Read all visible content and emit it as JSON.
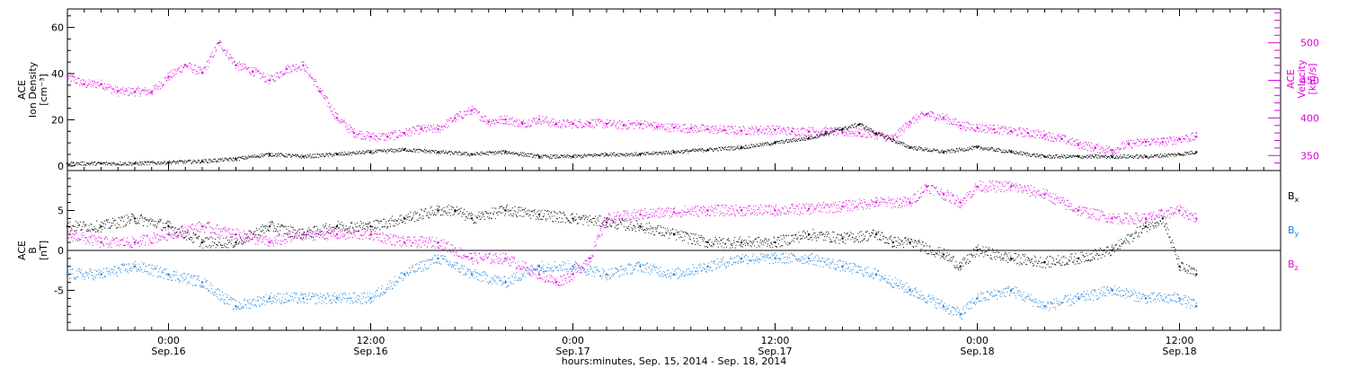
{
  "colors": {
    "black": "#000000",
    "magenta": "#e000e0",
    "blue": "#1a7fd8"
  },
  "xlabel": "hours:minutes, Sep. 15, 2014 - Sep. 18, 2014",
  "x_range_hours": [
    18,
    90
  ],
  "x_ticks": [
    {
      "hour": 24,
      "time": "0:00",
      "date": "Sep.16"
    },
    {
      "hour": 36,
      "time": "12:00",
      "date": "Sep.16"
    },
    {
      "hour": 48,
      "time": "0:00",
      "date": "Sep.17"
    },
    {
      "hour": 60,
      "time": "12:00",
      "date": "Sep.17"
    },
    {
      "hour": 72,
      "time": "0:00",
      "date": "Sep.18"
    },
    {
      "hour": 84,
      "time": "12:00",
      "date": "Sep.18"
    }
  ],
  "chart_data": [
    {
      "type": "scatter",
      "panel": "top",
      "ylabel_left": [
        "ACE",
        "Ion Density",
        "[cm⁻³]"
      ],
      "ylabel_right": [
        "ACE",
        "Velocity",
        "[km/s]"
      ],
      "ylim_left": [
        -2,
        68
      ],
      "ylim_right": [
        330,
        545
      ],
      "yticks_left": [
        0,
        20,
        40,
        60
      ],
      "yticks_right": [
        350,
        400,
        450,
        500
      ],
      "series": [
        {
          "axis": "left",
          "color": "#000000",
          "x": [
            18,
            20,
            22,
            24,
            26,
            28,
            30,
            32,
            34,
            36,
            38,
            40,
            42,
            44,
            46,
            48,
            50,
            52,
            54,
            56,
            58,
            60,
            62,
            63,
            64,
            65,
            66,
            68,
            70,
            72,
            74,
            76,
            78,
            80,
            82,
            84,
            85
          ],
          "y": [
            1,
            1,
            1,
            1.5,
            2,
            3,
            5,
            4,
            5,
            6,
            7,
            6,
            5,
            6,
            4,
            4,
            5,
            5,
            6,
            7,
            8,
            10,
            12,
            14,
            16,
            18,
            14,
            8,
            6,
            8,
            6,
            4,
            4,
            4,
            4,
            5,
            6
          ]
        },
        {
          "axis": "right",
          "color": "#e000e0",
          "x": [
            18,
            19,
            20,
            21,
            22,
            23,
            24,
            25,
            26,
            27,
            28,
            29,
            30,
            31,
            32,
            33,
            34,
            35,
            36,
            37,
            38,
            39,
            40,
            41,
            42,
            43,
            44,
            45,
            46,
            47,
            48,
            49,
            50,
            51,
            52,
            53,
            54,
            55,
            56,
            57,
            58,
            59,
            60,
            61,
            62,
            63,
            64,
            65,
            66,
            67,
            68,
            69,
            70,
            71,
            72,
            73,
            74,
            75,
            76,
            77,
            78,
            79,
            80,
            81,
            82,
            83,
            84,
            85
          ],
          "y": [
            455,
            445,
            445,
            435,
            435,
            435,
            455,
            470,
            460,
            500,
            470,
            462,
            450,
            465,
            470,
            435,
            400,
            380,
            375,
            375,
            380,
            385,
            385,
            400,
            410,
            395,
            398,
            392,
            398,
            392,
            392,
            393,
            392,
            390,
            392,
            388,
            387,
            386,
            385,
            384,
            383,
            384,
            384,
            382,
            382,
            382,
            381,
            380,
            378,
            372,
            395,
            405,
            400,
            390,
            387,
            385,
            382,
            380,
            377,
            372,
            365,
            360,
            357,
            365,
            368,
            368,
            372,
            375
          ]
        }
      ]
    },
    {
      "type": "scatter",
      "panel": "bottom",
      "ylabel_left": [
        "ACE",
        "B",
        "[nT]"
      ],
      "ylim": [
        -10,
        10
      ],
      "yticks": [
        -5,
        0,
        5
      ],
      "legend": [
        {
          "label": "Bx",
          "base": "B",
          "sub": "x",
          "color": "#000000"
        },
        {
          "label": "By",
          "base": "B",
          "sub": "y",
          "color": "#1a7fd8"
        },
        {
          "label": "Bz",
          "base": "B",
          "sub": "z",
          "color": "#e000e0"
        }
      ],
      "series": [
        {
          "name": "Bx",
          "color": "#000000",
          "x": [
            18,
            20,
            22,
            24,
            26,
            28,
            30,
            32,
            34,
            36,
            38,
            40,
            41,
            42,
            44,
            46,
            48,
            50,
            52,
            54,
            56,
            58,
            60,
            62,
            64,
            66,
            67,
            68,
            70,
            71,
            72,
            74,
            76,
            78,
            80,
            82,
            83,
            84,
            85
          ],
          "y": [
            3,
            3,
            4,
            3,
            1,
            1,
            3,
            2,
            3,
            3,
            4,
            5,
            5,
            4,
            5,
            4.5,
            4,
            3.5,
            3,
            2,
            1,
            1,
            1,
            2,
            1.5,
            2,
            1,
            1,
            -0.5,
            -2,
            0,
            -1,
            -1.5,
            -1,
            0,
            3,
            4,
            -2,
            -3
          ]
        },
        {
          "name": "By",
          "color": "#1a7fd8",
          "x": [
            18,
            20,
            22,
            24,
            26,
            28,
            30,
            32,
            34,
            36,
            38,
            40,
            42,
            44,
            46,
            48,
            50,
            52,
            54,
            56,
            58,
            60,
            62,
            64,
            66,
            68,
            70,
            71,
            72,
            74,
            76,
            78,
            80,
            82,
            84,
            85
          ],
          "y": [
            -3,
            -3,
            -2,
            -3,
            -4,
            -7,
            -6,
            -6,
            -6,
            -6,
            -3,
            -1,
            -3,
            -4,
            -2,
            -2,
            -3,
            -2,
            -3,
            -2,
            -1,
            -1,
            -1,
            -2,
            -3,
            -5,
            -7,
            -8,
            -6,
            -5,
            -7,
            -6,
            -5,
            -6,
            -6,
            -7
          ]
        },
        {
          "name": "Bz",
          "color": "#e000e0",
          "x": [
            18,
            20,
            22,
            24,
            26,
            28,
            30,
            32,
            34,
            36,
            38,
            40,
            42,
            44,
            46,
            47,
            48,
            49,
            50,
            52,
            54,
            56,
            58,
            60,
            62,
            64,
            66,
            68,
            69,
            70,
            71,
            72,
            74,
            76,
            78,
            80,
            82,
            84,
            85
          ],
          "y": [
            2,
            1,
            1,
            2,
            3,
            2,
            1,
            2,
            2,
            2,
            1,
            1,
            -1,
            -1,
            -3,
            -4,
            -3,
            -1,
            4,
            4.5,
            4.8,
            5,
            5,
            5,
            5.2,
            5.5,
            6,
            6,
            8,
            7,
            6,
            8,
            8,
            7,
            5,
            4,
            4,
            5,
            4
          ]
        }
      ]
    }
  ]
}
